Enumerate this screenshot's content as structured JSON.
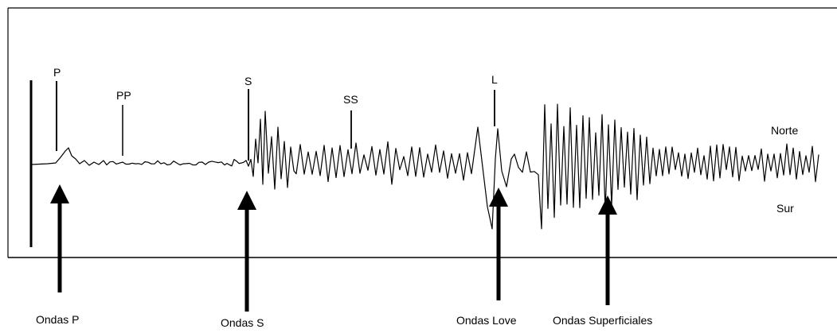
{
  "phase_markers": {
    "p": "P",
    "pp": "PP",
    "s": "S",
    "ss": "SS",
    "l": "L"
  },
  "direction_labels": {
    "north": "Norte",
    "south": "Sur"
  },
  "arrow_labels": {
    "p_waves": "Ondas P",
    "s_waves": "Ondas S",
    "love_waves": "Ondas Love",
    "surface_waves": "Ondas Superficiales"
  },
  "colors": {
    "ink": "#000000",
    "background": "#ffffff"
  }
}
